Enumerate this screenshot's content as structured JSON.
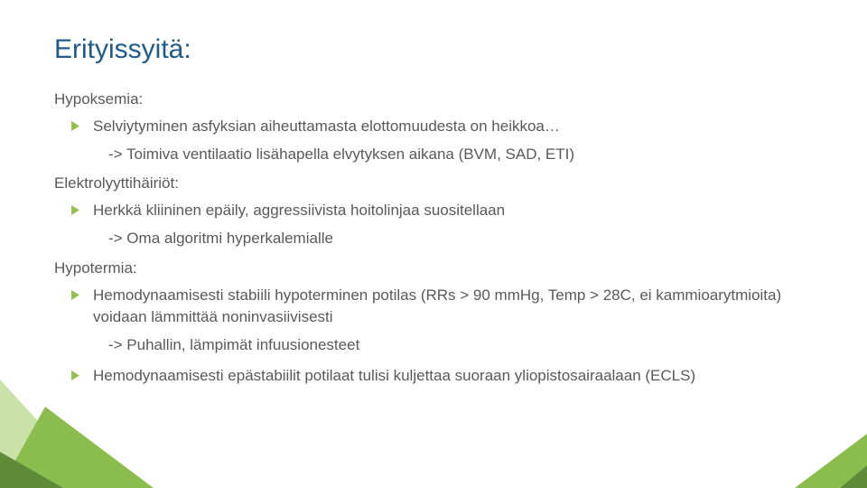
{
  "colors": {
    "title": "#1e5a8a",
    "body": "#595959",
    "bullet": "#90c048",
    "tri_green_dark": "#5f8a3a",
    "tri_green_mid": "#8bbd4e",
    "tri_green_light": "#c9e2a8",
    "background": "#ffffff"
  },
  "typography": {
    "title_fontsize": 30,
    "body_fontsize": 17,
    "font_family": "Segoe UI"
  },
  "title": "Erityissyitä:",
  "sections": [
    {
      "head": "Hypoksemia:",
      "items": [
        {
          "bullet": "Selviytyminen asfyksian aiheuttamasta elottomuudesta on heikkoa…",
          "sub": "-> Toimiva ventilaatio lisähapella elvytyksen aikana (BVM, SAD, ETI)"
        }
      ]
    },
    {
      "head": "Elektrolyyttihäiriöt:",
      "items": [
        {
          "bullet": "Herkkä kliininen epäily, aggressiivista hoitolinjaa suositellaan",
          "sub": "-> Oma algoritmi hyperkalemialle"
        }
      ]
    },
    {
      "head": "Hypotermia:",
      "items": [
        {
          "bullet": "Hemodynaamisesti stabiili hypoterminen potilas (RRs > 90 mmHg, Temp > 28C, ei kammioarytmioita) voidaan lämmittää noninvasiivisesti",
          "sub": "-> Puhallin, lämpimät infuusionesteet"
        },
        {
          "bullet": "Hemodynaamisesti epästabiilit potilaat tulisi kuljettaa suoraan yliopistosairaalaan (ECLS)",
          "sub": null
        }
      ]
    }
  ]
}
